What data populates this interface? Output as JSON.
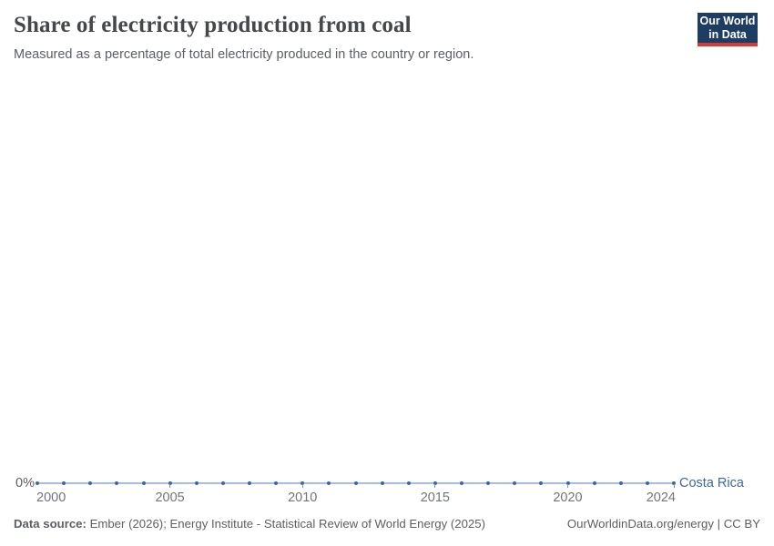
{
  "colors": {
    "accent_blue": "#3d67a6",
    "line_light_blue": "#a3c1e0",
    "logo_navy": "#1d3d63",
    "logo_red": "#d93b34",
    "title_gray": "#44484b",
    "text_gray": "#5b6064",
    "tick_label_gray": "#707579"
  },
  "header": {
    "title": "Share of electricity production from coal",
    "subtitle": "Measured as a percentage of total electricity produced in the country or region.",
    "logo_line1": "Our World",
    "logo_line2": "in Data"
  },
  "chart_data": {
    "type": "line",
    "title": "Share of electricity production from coal",
    "unit": "%",
    "x": [
      2000,
      2001,
      2002,
      2003,
      2004,
      2005,
      2006,
      2007,
      2008,
      2009,
      2010,
      2011,
      2012,
      2013,
      2014,
      2015,
      2016,
      2017,
      2018,
      2019,
      2020,
      2021,
      2022,
      2023,
      2024
    ],
    "series": [
      {
        "name": "Costa Rica",
        "color": "#3d67a6",
        "values": [
          0,
          0,
          0,
          0,
          0,
          0,
          0,
          0,
          0,
          0,
          0,
          0,
          0,
          0,
          0,
          0,
          0,
          0,
          0,
          0,
          0,
          0,
          0,
          0,
          0
        ]
      }
    ],
    "xlim": [
      2000,
      2024
    ],
    "x_ticks": [
      2000,
      2005,
      2010,
      2015,
      2020,
      2024
    ],
    "x_tick_labels": [
      "2000",
      "2005",
      "2010",
      "2015",
      "2020",
      "2024"
    ],
    "x_ticks_marked": [
      2005,
      2010,
      2015,
      2020,
      2024
    ],
    "y_tick_labels": [
      "0%"
    ],
    "grid": false,
    "legend_position": "end-of-line"
  },
  "footer": {
    "source_label": "Data source:",
    "source_text": "Ember (2026); Energy Institute - Statistical Review of World Energy (2025)",
    "credit": "OurWorldinData.org/energy | CC BY"
  }
}
